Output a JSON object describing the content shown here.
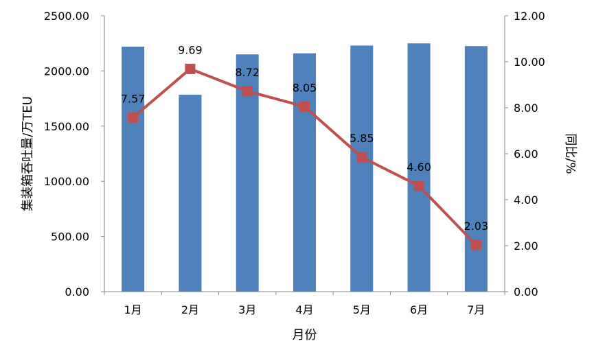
{
  "chart_data": {
    "type": "bar",
    "categories": [
      "1月",
      "2月",
      "3月",
      "4月",
      "5月",
      "6月",
      "7月"
    ],
    "xlabel": "月份",
    "ylabel": "集装箱吞吐量/万TEU",
    "y2label": "同比/%",
    "ylim": [
      0,
      2500
    ],
    "y2lim": [
      0,
      12
    ],
    "yticks": [
      "0.00",
      "500.00",
      "1000.00",
      "1500.00",
      "2000.00",
      "2500.00"
    ],
    "y2ticks": [
      "0.00",
      "2.00",
      "4.00",
      "6.00",
      "8.00",
      "10.00",
      "12.00"
    ],
    "grid": false,
    "series": [
      {
        "type": "bar",
        "axis": "left",
        "color": "#4F81BD",
        "values": [
          2220,
          1785,
          2150,
          2160,
          2230,
          2250,
          2225
        ]
      },
      {
        "type": "line",
        "axis": "right",
        "color": "#C0504D",
        "marker": "square",
        "values": [
          7.57,
          9.69,
          8.72,
          8.05,
          5.85,
          4.6,
          2.03
        ],
        "labels": [
          "7.57",
          "9.69",
          "8.72",
          "8.05",
          "5.85",
          "4.60",
          "2.03"
        ]
      }
    ]
  }
}
